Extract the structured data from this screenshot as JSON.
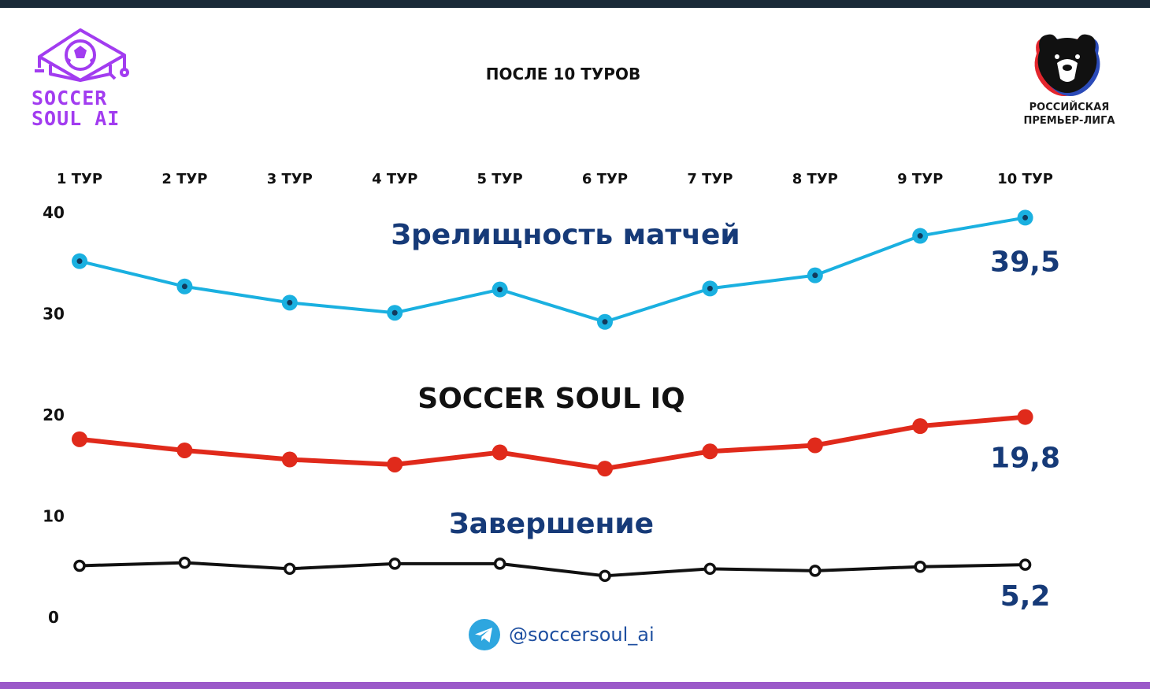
{
  "header": {
    "brand_line1": "SOCCER",
    "brand_line2": "SOUL AI",
    "title": "ПОСЛЕ 10 ТУРОВ",
    "league_line1": "РОССИЙСКАЯ",
    "league_line2": "ПРЕМЬЕР-ЛИГА"
  },
  "footer": {
    "telegram_handle": "@soccersoul_ai"
  },
  "chart_data": {
    "type": "line",
    "title": "",
    "xlabel": "",
    "ylabel": "",
    "categories": [
      "1 ТУР",
      "2 ТУР",
      "3 ТУР",
      "4 ТУР",
      "5 ТУР",
      "6 ТУР",
      "7 ТУР",
      "8 ТУР",
      "9 ТУР",
      "10 ТУР"
    ],
    "ylim": [
      0,
      40
    ],
    "yticks": [
      0,
      10,
      20,
      30,
      40
    ],
    "grid": false,
    "legend": "none",
    "series": [
      {
        "name": "Зрелищность матчей",
        "color": "#1ab0e0",
        "values": [
          35.2,
          32.7,
          31.1,
          30.1,
          32.4,
          29.2,
          32.5,
          33.8,
          37.7,
          39.5
        ],
        "end_label": "39,5"
      },
      {
        "name": "SOCCER SOUL IQ",
        "color": "#e02a1b",
        "values": [
          17.6,
          16.5,
          15.6,
          15.1,
          16.3,
          14.7,
          16.4,
          17.0,
          18.9,
          19.8
        ],
        "end_label": "19,8"
      },
      {
        "name": "Завершение",
        "color": "#111111",
        "values": [
          5.1,
          5.4,
          4.8,
          5.3,
          5.3,
          4.1,
          4.8,
          4.6,
          5.0,
          5.2
        ],
        "end_label": "5,2"
      }
    ]
  }
}
